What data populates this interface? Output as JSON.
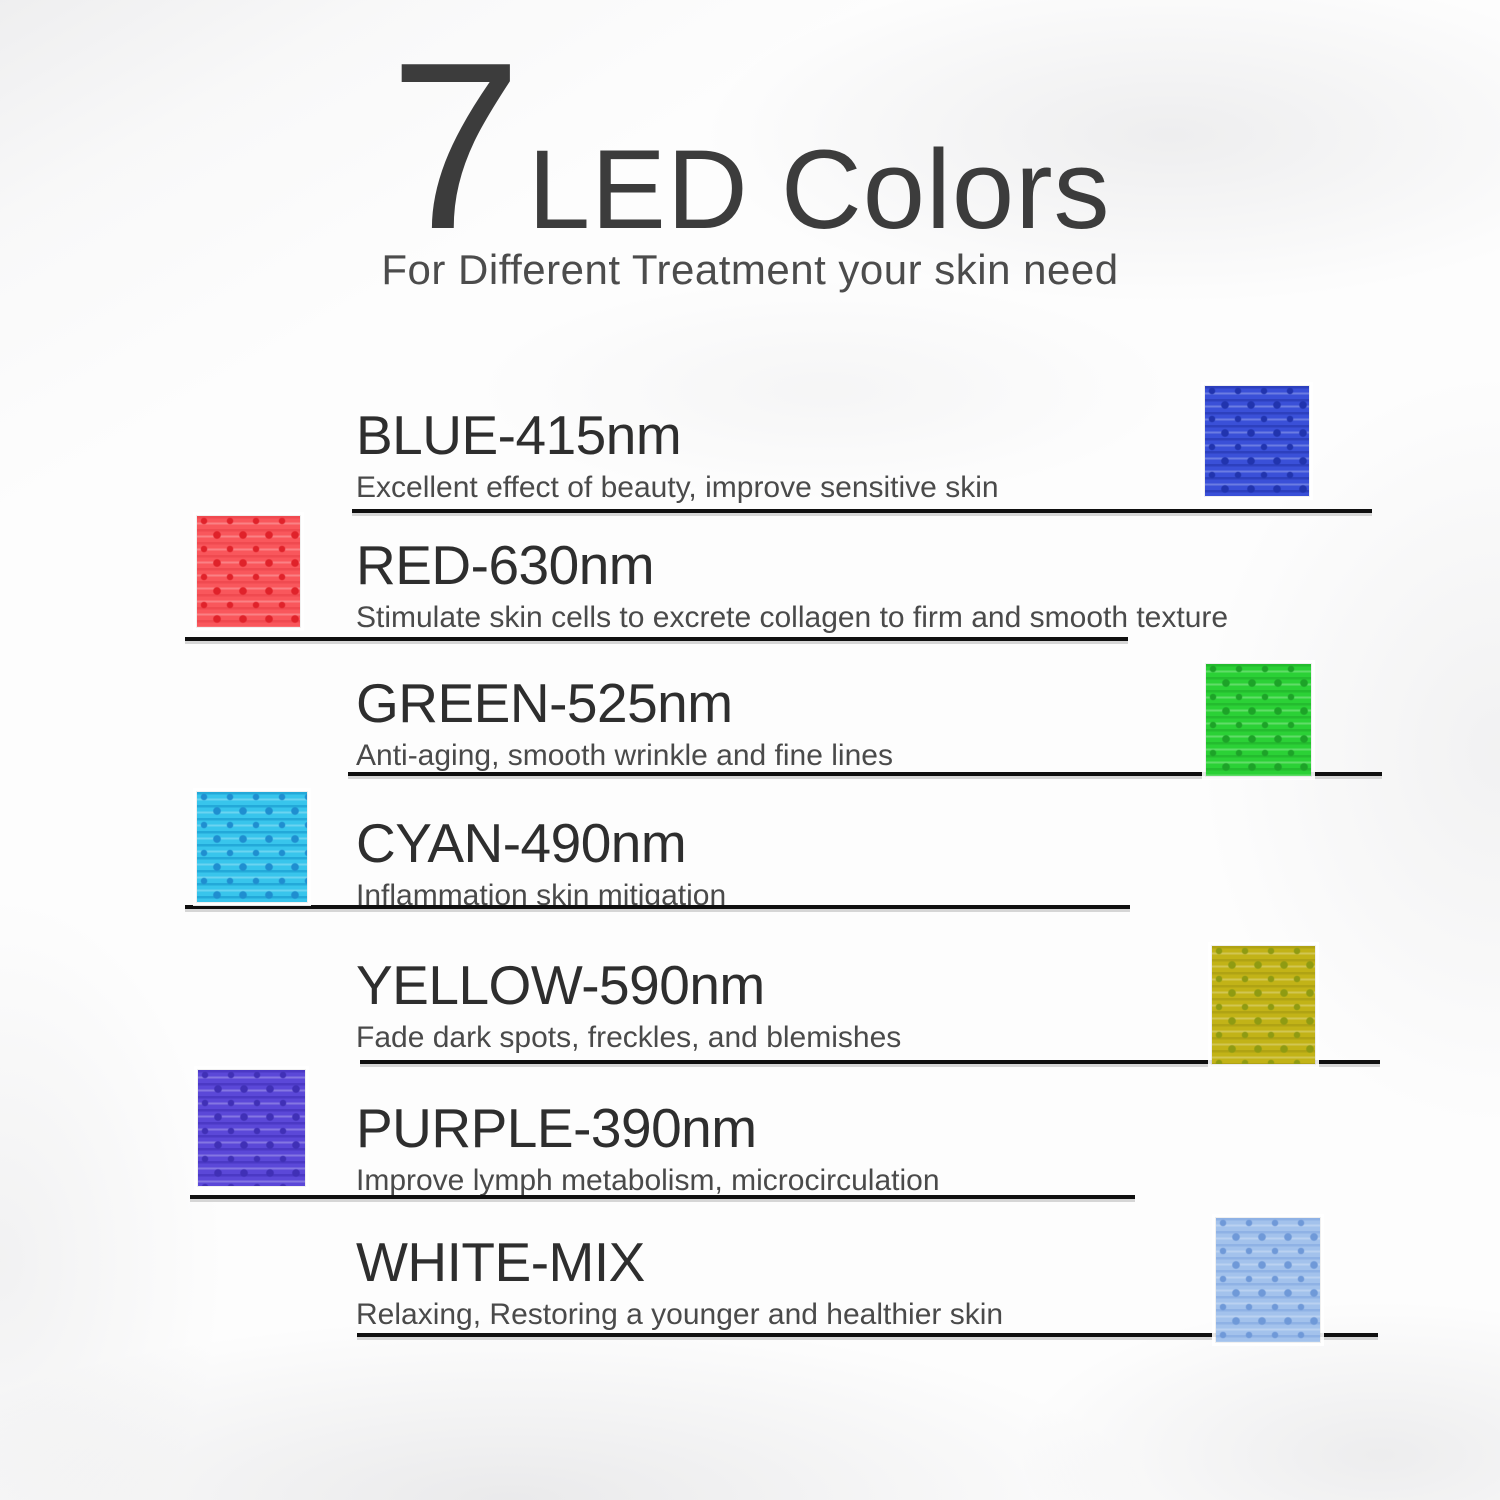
{
  "header": {
    "number": "7",
    "title": "LED Colors",
    "subtitle": "For Different Treatment your skin need"
  },
  "colors": [
    {
      "name": "BLUE-415nm",
      "description": "Excellent effect of beauty, improve sensitive skin",
      "swatch": {
        "side": "right",
        "base": "#3a50d8",
        "stripe": "#2d40be",
        "dot": "#2134ae"
      }
    },
    {
      "name": "RED-630nm",
      "description": "Stimulate skin cells to excrete collagen to firm and smooth texture",
      "swatch": {
        "side": "left",
        "base": "#f9575c",
        "stripe": "#f04a50",
        "dot": "#e0222a"
      }
    },
    {
      "name": "GREEN-525nm",
      "description": "Anti-aging, smooth wrinkle and fine lines",
      "swatch": {
        "side": "right",
        "base": "#2bd136",
        "stripe": "#24bc2f",
        "dot": "#1da328"
      }
    },
    {
      "name": "CYAN-490nm",
      "description": "Inflammation skin mitigation",
      "swatch": {
        "side": "left",
        "base": "#38c5ec",
        "stripe": "#23a9d9",
        "dot": "#1f8ed0"
      }
    },
    {
      "name": "YELLOW-590nm",
      "description": "Fade dark spots, freckles, and blemishes",
      "swatch": {
        "side": "right",
        "base": "#c2b317",
        "stripe": "#b0a314",
        "dot": "#8f9b12"
      }
    },
    {
      "name": "PURPLE-390nm",
      "description": "Improve lymph metabolism, microcirculation",
      "swatch": {
        "side": "left",
        "base": "#5b48d8",
        "stripe": "#4b39c5",
        "dot": "#4030b6"
      }
    },
    {
      "name": "WHITE-MIX",
      "description": "Relaxing, Restoring a younger and healthier skin",
      "swatch": {
        "side": "right",
        "base": "#a3c2ec",
        "stripe": "#8fb2e5",
        "dot": "#6f99d8"
      }
    }
  ]
}
